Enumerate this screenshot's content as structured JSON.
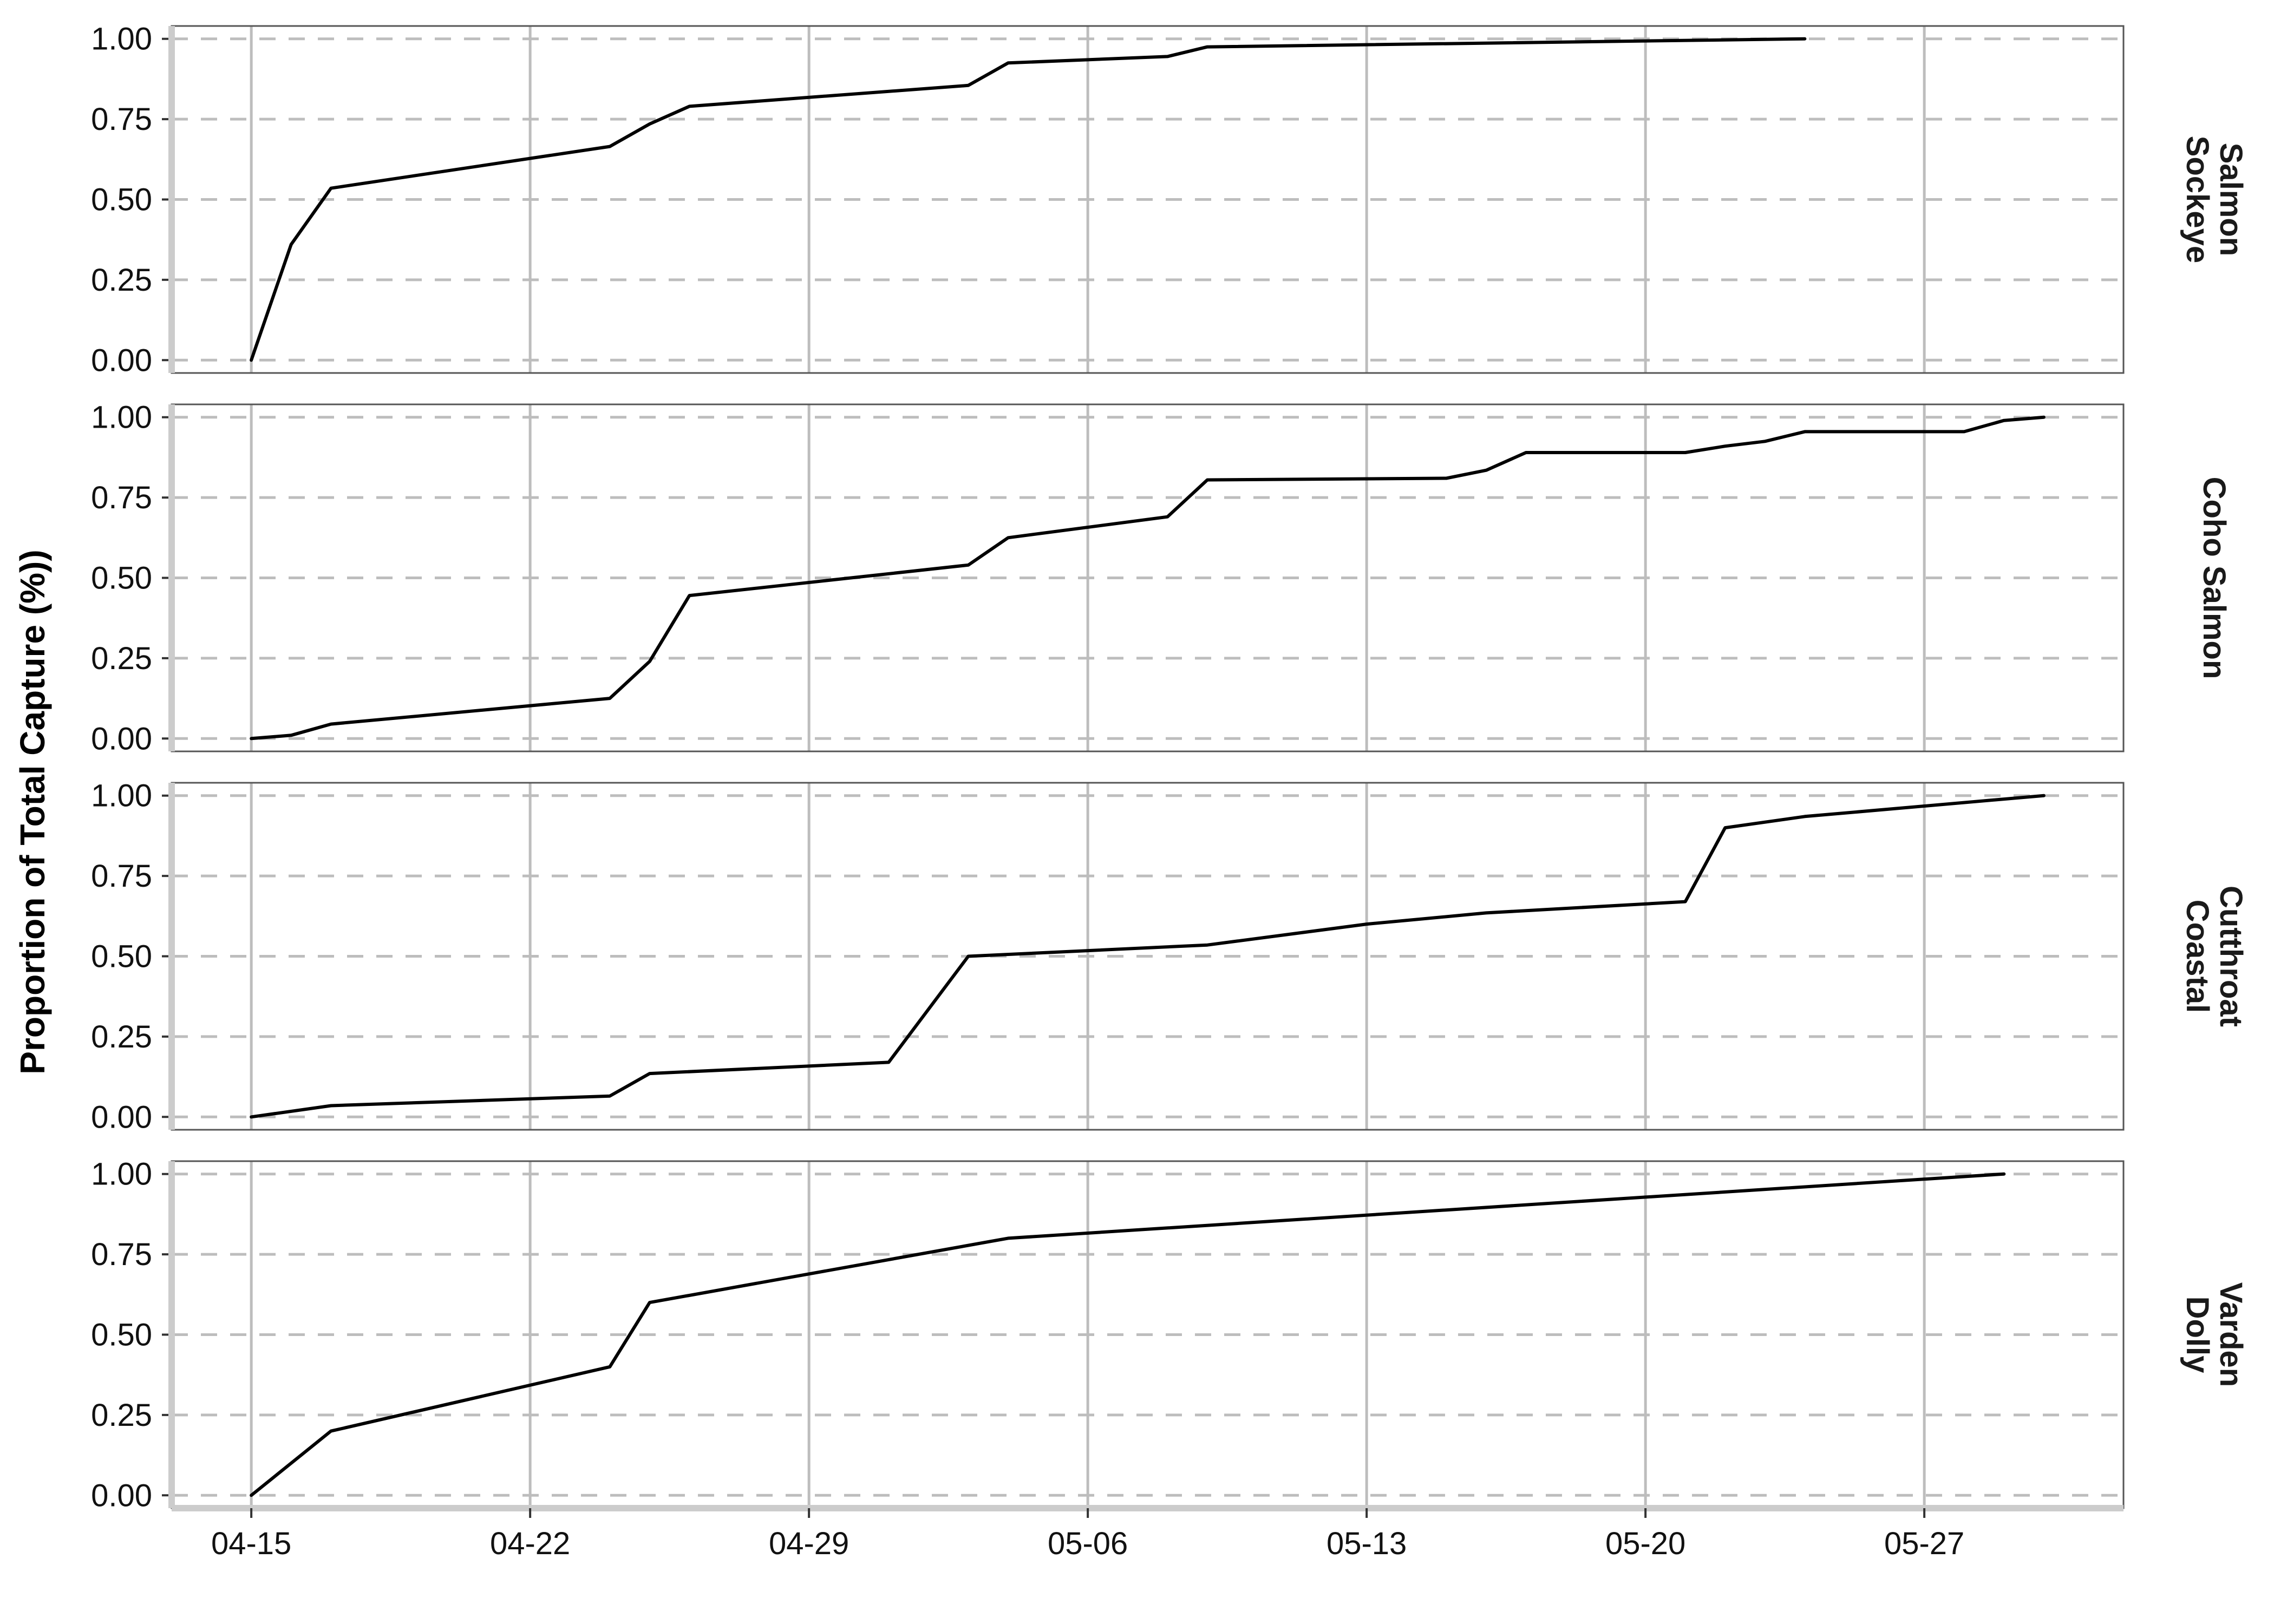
{
  "chart_data": {
    "type": "line",
    "ylabel": "Proportion of Total Capture (%))",
    "xlabel": "",
    "x_axis": {
      "type": "date",
      "year": 2019,
      "range": [
        "2019-04-13",
        "2019-06-01"
      ],
      "tick_dates": [
        "2019-04-15",
        "2019-04-22",
        "2019-04-29",
        "2019-05-06",
        "2019-05-13",
        "2019-05-20",
        "2019-05-27"
      ],
      "tick_labels": [
        "04-15",
        "04-22",
        "04-29",
        "05-06",
        "05-13",
        "05-20",
        "05-27"
      ]
    },
    "y_axis": {
      "range": [
        -0.04,
        1.04
      ],
      "ticks": [
        0,
        0.25,
        0.5,
        0.75,
        1
      ],
      "tick_labels": [
        "0.00",
        "0.25",
        "0.50",
        "0.75",
        "1.00"
      ]
    },
    "grid": {
      "vertical": "solid",
      "horizontal": "dashed"
    },
    "line_color": "#000000",
    "panels": [
      {
        "label": [
          "Sockeye",
          "Salmon"
        ],
        "points": [
          [
            "2019-04-15",
            0.0
          ],
          [
            "2019-04-16",
            0.36
          ],
          [
            "2019-04-17",
            0.535
          ],
          [
            "2019-04-24",
            0.665
          ],
          [
            "2019-04-25",
            0.735
          ],
          [
            "2019-04-26",
            0.79
          ],
          [
            "2019-05-03",
            0.855
          ],
          [
            "2019-05-04",
            0.925
          ],
          [
            "2019-05-08",
            0.945
          ],
          [
            "2019-05-09",
            0.975
          ],
          [
            "2019-05-24",
            1.0
          ]
        ]
      },
      {
        "label": [
          "Coho Salmon"
        ],
        "points": [
          [
            "2019-04-15",
            0.0
          ],
          [
            "2019-04-16",
            0.01
          ],
          [
            "2019-04-17",
            0.045
          ],
          [
            "2019-04-24",
            0.125
          ],
          [
            "2019-04-25",
            0.24
          ],
          [
            "2019-04-26",
            0.445
          ],
          [
            "2019-05-03",
            0.54
          ],
          [
            "2019-05-04",
            0.625
          ],
          [
            "2019-05-08",
            0.69
          ],
          [
            "2019-05-09",
            0.805
          ],
          [
            "2019-05-15",
            0.81
          ],
          [
            "2019-05-16",
            0.835
          ],
          [
            "2019-05-17",
            0.89
          ],
          [
            "2019-05-21",
            0.89
          ],
          [
            "2019-05-22",
            0.91
          ],
          [
            "2019-05-23",
            0.925
          ],
          [
            "2019-05-24",
            0.955
          ],
          [
            "2019-05-28",
            0.955
          ],
          [
            "2019-05-29",
            0.99
          ],
          [
            "2019-05-30",
            1.0
          ]
        ]
      },
      {
        "label": [
          "Coastal",
          "Cutthroat"
        ],
        "points": [
          [
            "2019-04-15",
            0.0
          ],
          [
            "2019-04-17",
            0.035
          ],
          [
            "2019-04-24",
            0.065
          ],
          [
            "2019-04-25",
            0.135
          ],
          [
            "2019-05-01",
            0.17
          ],
          [
            "2019-05-03",
            0.5
          ],
          [
            "2019-05-09",
            0.535
          ],
          [
            "2019-05-13",
            0.6
          ],
          [
            "2019-05-16",
            0.635
          ],
          [
            "2019-05-21",
            0.67
          ],
          [
            "2019-05-22",
            0.9
          ],
          [
            "2019-05-24",
            0.935
          ],
          [
            "2019-05-30",
            1.0
          ]
        ]
      },
      {
        "label": [
          "Dolly",
          "Varden"
        ],
        "points": [
          [
            "2019-04-15",
            0.0
          ],
          [
            "2019-04-17",
            0.2
          ],
          [
            "2019-04-24",
            0.4
          ],
          [
            "2019-04-25",
            0.6
          ],
          [
            "2019-05-04",
            0.8
          ],
          [
            "2019-05-29",
            1.0
          ]
        ]
      }
    ]
  }
}
